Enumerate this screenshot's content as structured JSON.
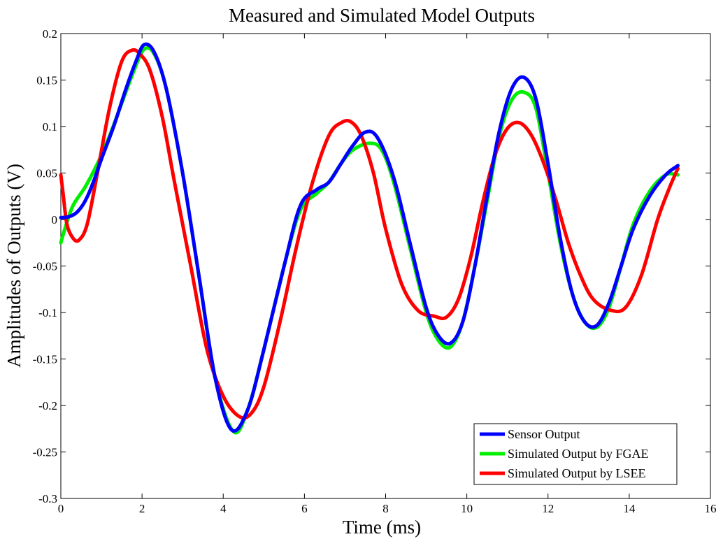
{
  "chart_data": {
    "type": "line",
    "title": "Measured and Simulated Model Outputs",
    "xlabel": "Time (ms)",
    "ylabel": "Amplitudes of Outputs (V)",
    "xlim": [
      0,
      16
    ],
    "ylim": [
      -0.3,
      0.2
    ],
    "xticks": [
      0,
      2,
      4,
      6,
      8,
      10,
      12,
      14,
      16
    ],
    "yticks": [
      -0.3,
      -0.25,
      -0.2,
      -0.15,
      -0.1,
      -0.05,
      0,
      0.05,
      0.1,
      0.15,
      0.2
    ],
    "xtick_labels": [
      "0",
      "2",
      "4",
      "6",
      "8",
      "10",
      "12",
      "14",
      "16"
    ],
    "ytick_labels": [
      "-0.3",
      "-0.25",
      "-0.2",
      "-0.15",
      "-0.1",
      "-0.05",
      "0",
      "0.05",
      "0.1",
      "0.15",
      "0.2"
    ],
    "grid": false,
    "legend_position": "bottom-right",
    "series": [
      {
        "name": "Sensor Output",
        "color": "#0000ff",
        "x": [
          0,
          0.2,
          0.4,
          0.6,
          0.8,
          1.0,
          1.3,
          1.6,
          1.85,
          2.05,
          2.3,
          2.6,
          3.0,
          3.4,
          3.8,
          4.2,
          4.6,
          5.0,
          5.5,
          5.9,
          6.3,
          6.6,
          6.9,
          7.2,
          7.5,
          7.8,
          8.2,
          8.6,
          9.0,
          9.3,
          9.6,
          9.9,
          10.2,
          10.5,
          10.8,
          11.1,
          11.4,
          11.7,
          12.0,
          12.3,
          12.6,
          12.9,
          13.2,
          13.5,
          13.8,
          14.1,
          14.5,
          14.9,
          15.2
        ],
        "values": [
          0.002,
          0.003,
          0.008,
          0.02,
          0.04,
          0.065,
          0.1,
          0.14,
          0.17,
          0.188,
          0.18,
          0.14,
          0.05,
          -0.06,
          -0.17,
          -0.226,
          -0.205,
          -0.14,
          -0.05,
          0.015,
          0.032,
          0.04,
          0.06,
          0.08,
          0.094,
          0.088,
          0.045,
          -0.025,
          -0.095,
          -0.125,
          -0.133,
          -0.11,
          -0.05,
          0.025,
          0.095,
          0.14,
          0.153,
          0.13,
          0.06,
          -0.02,
          -0.08,
          -0.11,
          -0.114,
          -0.09,
          -0.05,
          -0.01,
          0.025,
          0.048,
          0.058
        ]
      },
      {
        "name": "Simulated Output by FGAE",
        "color": "#00ee00",
        "x": [
          0,
          0.1,
          0.3,
          0.6,
          0.9,
          1.2,
          1.5,
          1.8,
          2.05,
          2.3,
          2.6,
          3.0,
          3.4,
          3.8,
          4.25,
          4.6,
          5.0,
          5.5,
          5.9,
          6.3,
          6.6,
          6.9,
          7.2,
          7.6,
          7.9,
          8.2,
          8.6,
          9.0,
          9.3,
          9.6,
          9.9,
          10.2,
          10.5,
          10.8,
          11.1,
          11.4,
          11.7,
          12.0,
          12.3,
          12.6,
          12.9,
          13.2,
          13.5,
          13.8,
          14.1,
          14.5,
          14.9,
          15.2
        ],
        "values": [
          -0.025,
          -0.01,
          0.015,
          0.035,
          0.06,
          0.09,
          0.125,
          0.16,
          0.183,
          0.178,
          0.14,
          0.05,
          -0.06,
          -0.17,
          -0.228,
          -0.205,
          -0.14,
          -0.05,
          0.01,
          0.028,
          0.04,
          0.06,
          0.075,
          0.082,
          0.075,
          0.04,
          -0.03,
          -0.1,
          -0.13,
          -0.137,
          -0.11,
          -0.05,
          0.02,
          0.09,
          0.128,
          0.137,
          0.12,
          0.05,
          -0.025,
          -0.08,
          -0.11,
          -0.116,
          -0.095,
          -0.05,
          -0.005,
          0.03,
          0.048,
          0.048
        ]
      },
      {
        "name": "Simulated Output by LSEE",
        "color": "#ff0000",
        "x": [
          0,
          0.05,
          0.15,
          0.3,
          0.45,
          0.65,
          0.9,
          1.2,
          1.5,
          1.75,
          1.95,
          2.2,
          2.5,
          2.8,
          3.2,
          3.6,
          4.0,
          4.4,
          4.7,
          5.0,
          5.4,
          5.8,
          6.2,
          6.6,
          6.9,
          7.15,
          7.4,
          7.7,
          8.0,
          8.4,
          8.8,
          9.2,
          9.5,
          9.8,
          10.1,
          10.4,
          10.7,
          11.0,
          11.3,
          11.6,
          11.9,
          12.2,
          12.5,
          12.8,
          13.1,
          13.5,
          13.9,
          14.3,
          14.7,
          15.0,
          15.2
        ],
        "values": [
          0.048,
          0.03,
          -0.005,
          -0.02,
          -0.022,
          -0.005,
          0.05,
          0.12,
          0.17,
          0.182,
          0.178,
          0.16,
          0.11,
          0.04,
          -0.05,
          -0.14,
          -0.19,
          -0.212,
          -0.208,
          -0.18,
          -0.11,
          -0.03,
          0.04,
          0.09,
          0.104,
          0.105,
          0.09,
          0.05,
          -0.01,
          -0.07,
          -0.098,
          -0.104,
          -0.105,
          -0.085,
          -0.04,
          0.02,
          0.07,
          0.098,
          0.104,
          0.09,
          0.06,
          0.02,
          -0.025,
          -0.06,
          -0.085,
          -0.097,
          -0.095,
          -0.06,
          0.0,
          0.035,
          0.055
        ]
      }
    ]
  }
}
